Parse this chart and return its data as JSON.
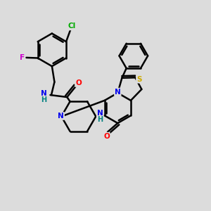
{
  "background_color": "#dcdcdc",
  "atom_colors": {
    "C": "#000000",
    "N_blue": "#0000ee",
    "N_teal": "#008080",
    "O": "#ff0000",
    "S": "#ccaa00",
    "F": "#cc00cc",
    "Cl": "#00aa00"
  },
  "bond_color": "#000000",
  "bond_width": 1.8,
  "figsize": [
    3.0,
    3.0
  ],
  "dpi": 100,
  "xlim": [
    0,
    10
  ],
  "ylim": [
    0,
    10
  ]
}
